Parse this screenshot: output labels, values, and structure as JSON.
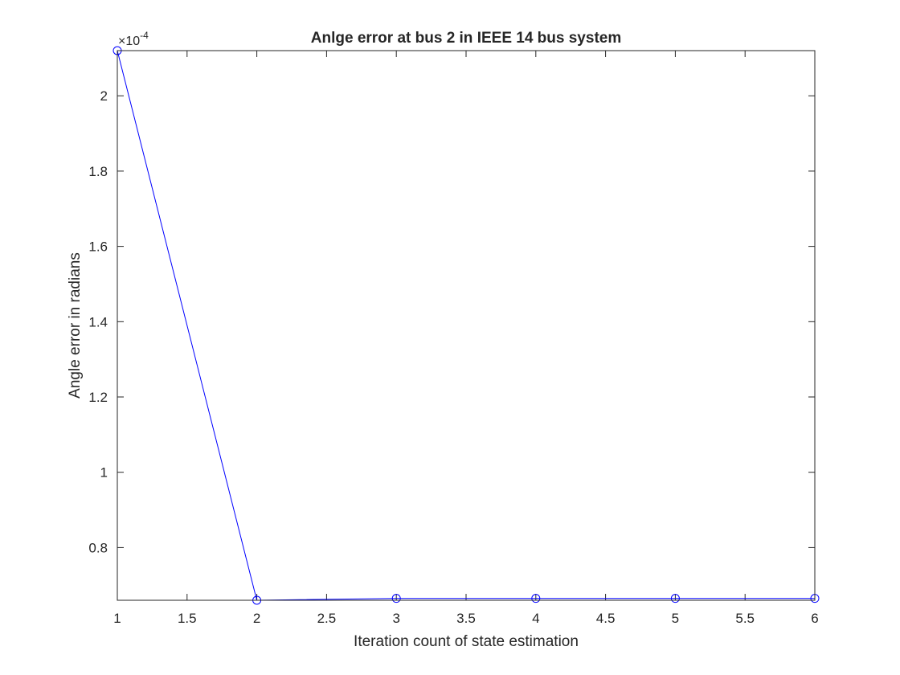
{
  "chart_data": {
    "type": "line",
    "title": "Anlge error at bus 2 in IEEE 14 bus system",
    "xlabel": "Iteration count of state estimation",
    "ylabel": "Angle error in radians",
    "y_exponent_label": "×10",
    "y_exponent_power": "-4",
    "xlim": [
      1,
      6
    ],
    "ylim": [
      0.66,
      2.12
    ],
    "x_ticks": [
      1,
      1.5,
      2,
      2.5,
      3,
      3.5,
      4,
      4.5,
      5,
      5.5,
      6
    ],
    "x_tick_labels": [
      "1",
      "1.5",
      "2",
      "2.5",
      "3",
      "3.5",
      "4",
      "4.5",
      "5",
      "5.5",
      "6"
    ],
    "y_ticks": [
      0.8,
      1.0,
      1.2,
      1.4,
      1.6,
      1.8,
      2.0
    ],
    "y_tick_labels": [
      "0.8",
      "1",
      "1.2",
      "1.4",
      "1.6",
      "1.8",
      "2"
    ],
    "grid": false,
    "series": [
      {
        "color": "#0000ff",
        "marker": "circle",
        "x": [
          1,
          2,
          3,
          4,
          5,
          6
        ],
        "y": [
          2.12,
          0.66,
          0.665,
          0.665,
          0.665,
          0.665
        ]
      }
    ]
  }
}
